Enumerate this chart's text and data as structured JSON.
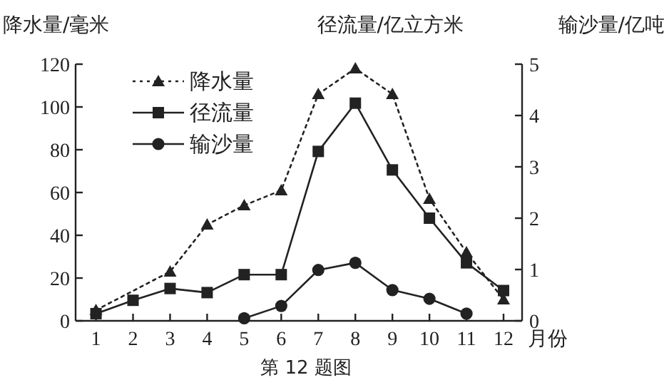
{
  "chart_data": {
    "type": "line",
    "title": "第 12 题图",
    "xlabel": "月份",
    "ylabel": "降水量/毫米",
    "y2label": "径流量/亿立方米",
    "annotations": [
      "输沙量/亿吨"
    ],
    "xlim": [
      0.45,
      12.5
    ],
    "xticks": [
      1,
      2,
      3,
      4,
      5,
      6,
      7,
      8,
      9,
      10,
      11,
      12
    ],
    "ylim": [
      0,
      120
    ],
    "yticks": [
      0,
      20,
      40,
      60,
      80,
      100,
      120
    ],
    "y2lim": [
      0,
      5
    ],
    "y2ticks": [
      0,
      1,
      2,
      3,
      4,
      5
    ],
    "legend": "top left",
    "grid": false,
    "series": [
      {
        "name": "降水量",
        "color": "#222222",
        "marker": "triangle",
        "line_style": "dotted",
        "x": [
          1,
          3,
          4,
          5,
          6,
          7,
          8,
          9,
          10,
          11,
          12
        ],
        "values": [
          5,
          23,
          45,
          54,
          61,
          106,
          118,
          106,
          57,
          32,
          10
        ]
      },
      {
        "name": "径流量",
        "color": "#222222",
        "marker": "square",
        "line_style": "solid",
        "axis": "y2",
        "x": [
          1,
          2,
          3,
          4,
          5,
          6,
          7,
          8,
          9,
          10,
          11,
          12
        ],
        "values": [
          0.14,
          0.4,
          0.63,
          0.55,
          0.9,
          0.9,
          3.3,
          4.24,
          2.94,
          2.0,
          1.13,
          0.59
        ]
      },
      {
        "name": "输沙量",
        "color": "#222222",
        "marker": "circle",
        "line_style": "solid",
        "axis": "y2",
        "x": [
          5,
          6,
          7,
          8,
          9,
          10,
          11
        ],
        "values": [
          0.05,
          0.29,
          0.99,
          1.13,
          0.6,
          0.43,
          0.14
        ]
      }
    ]
  }
}
